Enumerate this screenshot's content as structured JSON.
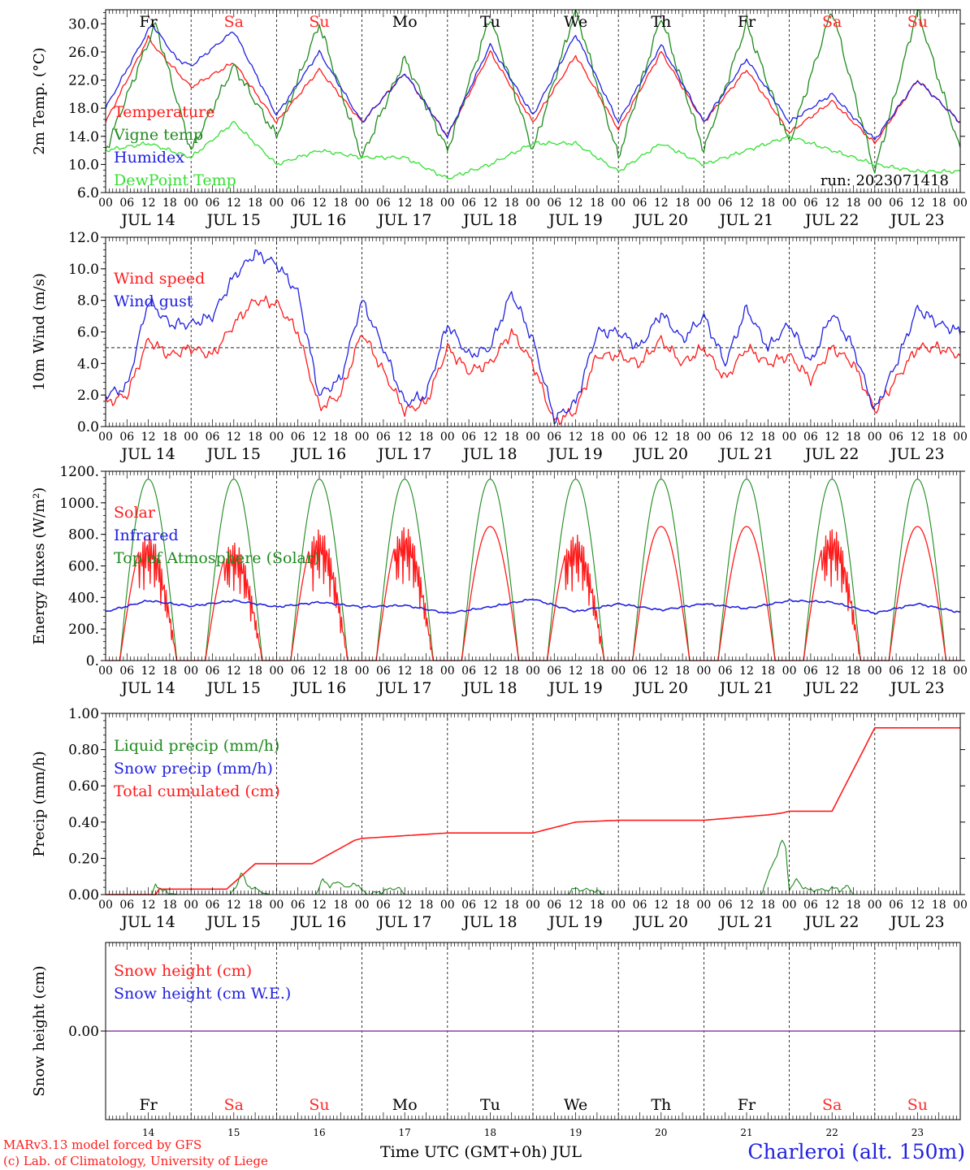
{
  "chart_data": {
    "type": "line",
    "days": [
      "14",
      "15",
      "16",
      "17",
      "18",
      "19",
      "20",
      "21",
      "22",
      "23"
    ],
    "date_labels": [
      "JUL 14",
      "JUL 15",
      "JUL 16",
      "JUL 17",
      "JUL 18",
      "JUL 19",
      "JUL 20",
      "JUL 21",
      "JUL 22",
      "JUL 23"
    ],
    "hour_labels": [
      "00",
      "06",
      "12",
      "18"
    ],
    "end_hour_label": "00",
    "weekdays": [
      "Fr",
      "Sa",
      "Su",
      "Mo",
      "Tu",
      "We",
      "Th",
      "Fr",
      "Sa",
      "Su"
    ],
    "weekend_flags": [
      false,
      true,
      true,
      false,
      false,
      false,
      false,
      false,
      true,
      true
    ],
    "colors": {
      "red": "#ff1a1a",
      "green": "#1e8a1e",
      "blue": "#2020e0",
      "lightgreen": "#33e033",
      "purple": "#8844aa",
      "weekend": "#ff2a2a"
    },
    "panels": [
      {
        "ylabel": "2m Temp. (°C)",
        "ylim": [
          6,
          32
        ],
        "ticks": [
          "6.0",
          "10.0",
          "14.0",
          "18.0",
          "22.0",
          "26.0",
          "30.0"
        ],
        "tick_values": [
          6,
          10,
          14,
          18,
          22,
          26,
          30
        ],
        "run_text": "run: 2023071418",
        "legend": [
          "Temperature",
          "Vigne temp",
          "Humidex",
          "DewPoint Temp"
        ],
        "series": [
          {
            "name": "Temperature",
            "color": "red",
            "x": [
              0,
              12,
              15,
              24,
              36,
              48,
              60,
              72,
              84,
              96,
              108,
              120,
              132,
              144,
              156,
              168,
              180,
              192,
              204,
              216,
              228,
              240
            ],
            "y": [
              16,
              28,
              26,
              21,
              24.5,
              16,
              23.5,
              16,
              23,
              14,
              26,
              16,
              25.5,
              15,
              26,
              16,
              23.5,
              14.5,
              19,
              13,
              22,
              16
            ]
          },
          {
            "name": "Vigne temp",
            "color": "green",
            "x": [
              0,
              14,
              24,
              36,
              48,
              60,
              72,
              84,
              96,
              108,
              120,
              132,
              144,
              156,
              168,
              180,
              192,
              204,
              216,
              228,
              240
            ],
            "y": [
              12,
              30,
              12,
              24,
              14,
              30,
              11,
              25,
              12,
              31,
              12,
              32,
              11,
              31,
              12,
              30,
              13,
              32,
              9,
              32,
              12
            ]
          },
          {
            "name": "Humidex",
            "color": "blue",
            "x": [
              0,
              13,
              20,
              24,
              36,
              48,
              60,
              72,
              84,
              96,
              108,
              120,
              132,
              144,
              156,
              168,
              180,
              192,
              204,
              216,
              228,
              240
            ],
            "y": [
              18,
              30,
              25,
              24,
              29,
              17,
              26,
              16,
              23,
              14,
              27,
              17,
              28.5,
              16,
              27,
              16,
              25,
              16,
              20,
              13.5,
              22,
              16
            ]
          },
          {
            "name": "DewPoint Temp",
            "color": "lightgreen",
            "x": [
              0,
              12,
              24,
              36,
              48,
              60,
              72,
              84,
              96,
              108,
              120,
              132,
              144,
              156,
              168,
              180,
              192,
              204,
              216,
              228,
              240
            ],
            "y": [
              12,
              13,
              11,
              16,
              10,
              12,
              11,
              11,
              8,
              10,
              13,
              13,
              9,
              13,
              10,
              12,
              14,
              12,
              10,
              9,
              9
            ]
          }
        ]
      },
      {
        "ylabel": "10m Wind (m/s)",
        "ylim": [
          0,
          12
        ],
        "ticks": [
          "0.0",
          "2.0",
          "4.0",
          "6.0",
          "8.0",
          "10.0",
          "12.0"
        ],
        "tick_values": [
          0,
          2,
          4,
          6,
          8,
          10,
          12
        ],
        "ref_line": 5,
        "legend": [
          "Wind speed",
          "Wind gust"
        ],
        "series": [
          {
            "name": "Wind speed",
            "color": "red",
            "x": [
              0,
              6,
              12,
              18,
              24,
              30,
              36,
              42,
              48,
              54,
              60,
              66,
              72,
              78,
              84,
              90,
              96,
              102,
              108,
              114,
              120,
              126,
              132,
              138,
              144,
              150,
              156,
              162,
              168,
              174,
              180,
              186,
              192,
              198,
              204,
              210,
              216,
              222,
              228,
              234,
              240
            ],
            "y": [
              1.5,
              2,
              5.5,
              4.5,
              5,
              4.5,
              6.5,
              8,
              7.8,
              6,
              1.2,
              2,
              6,
              3.5,
              1,
              1.5,
              5,
              3.5,
              4,
              6,
              4,
              0.3,
              1,
              4.5,
              4.5,
              4,
              5.5,
              4,
              5,
              3,
              5,
              4,
              4.5,
              3,
              5,
              4,
              1,
              3,
              5,
              5,
              4.5
            ]
          },
          {
            "name": "Wind gust",
            "color": "blue",
            "x": [
              0,
              6,
              12,
              18,
              24,
              30,
              36,
              42,
              48,
              54,
              60,
              66,
              72,
              78,
              84,
              90,
              96,
              102,
              108,
              114,
              120,
              126,
              132,
              138,
              144,
              150,
              156,
              162,
              168,
              174,
              180,
              186,
              192,
              198,
              204,
              210,
              216,
              222,
              228,
              234,
              240
            ],
            "y": [
              2,
              2.5,
              8,
              6.5,
              6.5,
              7,
              9.5,
              11,
              10.3,
              8.5,
              2,
              3,
              8,
              5,
              1.5,
              2,
              6.5,
              4.5,
              5,
              8.5,
              5.5,
              0.5,
              1.5,
              6,
              6,
              5,
              7.2,
              5.5,
              7,
              4,
              7.5,
              5,
              6.5,
              4,
              7.2,
              5,
              1,
              4,
              7.5,
              6.5,
              6
            ]
          }
        ]
      },
      {
        "ylabel": "Energy fluxes (W/m²)",
        "ylim": [
          0,
          1200
        ],
        "ticks": [
          "0.",
          "200.",
          "400.",
          "600.",
          "800.",
          "1000.",
          "1200."
        ],
        "tick_values": [
          0,
          200,
          400,
          600,
          800,
          1000,
          1200
        ],
        "legend": [
          "Solar",
          "Infrared",
          "Top of Atmosphere (Solar)"
        ],
        "toa_peak": 1150,
        "solar_peaks": [
          800,
          750,
          830,
          850,
          850,
          800,
          850,
          850,
          840,
          850
        ],
        "solar_rise_hour": 4,
        "solar_set_hour": 20,
        "infrared": {
          "x": [
            0,
            12,
            24,
            36,
            48,
            60,
            72,
            84,
            96,
            108,
            120,
            132,
            144,
            156,
            168,
            180,
            192,
            204,
            216,
            228,
            240
          ],
          "y": [
            310,
            380,
            345,
            380,
            340,
            370,
            340,
            350,
            300,
            340,
            390,
            310,
            360,
            320,
            360,
            330,
            380,
            370,
            300,
            360,
            305
          ]
        }
      },
      {
        "ylabel": "Precip (mm/h)",
        "ylim": [
          0,
          1
        ],
        "ticks": [
          "0.00",
          "0.20",
          "0.40",
          "0.60",
          "0.80",
          "1.00"
        ],
        "tick_values": [
          0,
          0.2,
          0.4,
          0.6,
          0.8,
          1
        ],
        "legend": [
          "Liquid precip (mm/h)",
          "Snow precip (mm/h)",
          "Total cumulated (cm)"
        ],
        "cumulated": {
          "x": [
            0,
            14,
            15,
            34,
            38,
            42,
            54,
            58,
            70,
            72,
            96,
            120,
            132,
            144,
            168,
            186,
            190,
            192,
            198,
            204,
            216,
            240
          ],
          "y": [
            0,
            0,
            0.03,
            0.03,
            0.1,
            0.17,
            0.17,
            0.17,
            0.3,
            0.31,
            0.34,
            0.34,
            0.4,
            0.41,
            0.41,
            0.44,
            0.45,
            0.46,
            0.46,
            0.46,
            0.92,
            0.92
          ]
        },
        "liquid": {
          "x": [
            0,
            13,
            14,
            16,
            20,
            35,
            37,
            38,
            40,
            42,
            46,
            59,
            61,
            63,
            66,
            68,
            70,
            72,
            74,
            82,
            84,
            130,
            132,
            134,
            136,
            140,
            168,
            184,
            190,
            191,
            192,
            194,
            196,
            198,
            200,
            202,
            204,
            206,
            208,
            210,
            240
          ],
          "y": [
            0,
            0,
            0.06,
            0.02,
            0,
            0,
            0.06,
            0.12,
            0.05,
            0.03,
            0,
            0,
            0.08,
            0.05,
            0.07,
            0.03,
            0.07,
            0.02,
            0,
            0.04,
            0,
            0,
            0.04,
            0.02,
            0.03,
            0,
            0,
            0,
            0.3,
            0.25,
            0.03,
            0.08,
            0.04,
            0.02,
            0.03,
            0.02,
            0.04,
            0.02,
            0.05,
            0,
            0
          ]
        }
      },
      {
        "ylabel": "Snow height (cm)",
        "ylim": [
          -1,
          1
        ],
        "ticks": [
          "0.00"
        ],
        "tick_values": [
          0
        ],
        "legend": [
          "Snow height (cm)",
          "Snow height (cm W.E.)"
        ],
        "value": 0
      }
    ],
    "xlabel": "Time UTC (GMT+0h) JUL",
    "footer_left": [
      "MARv3.13 model forced by GFS",
      "(c) Lab. of Climatology, University of Liege"
    ],
    "footer_right": "Charleroi (alt. 150m)"
  }
}
